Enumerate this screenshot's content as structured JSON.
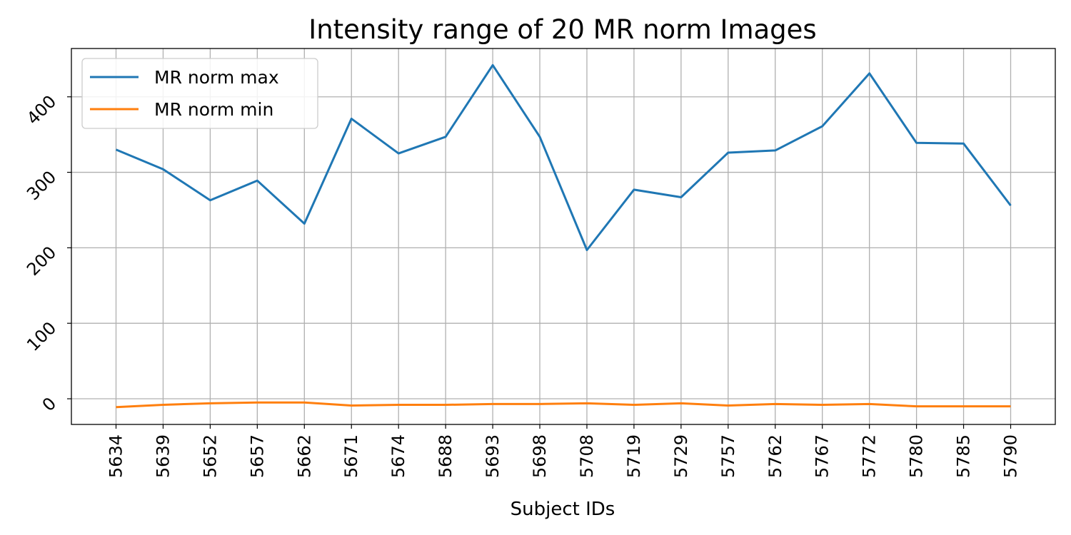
{
  "chart_data": {
    "type": "line",
    "title": "Intensity range of 20 MR norm Images",
    "xlabel": "Subject IDs",
    "ylabel": "",
    "categories": [
      "5634",
      "5639",
      "5652",
      "5657",
      "5662",
      "5671",
      "5674",
      "5688",
      "5693",
      "5698",
      "5708",
      "5719",
      "5729",
      "5757",
      "5762",
      "5767",
      "5772",
      "5780",
      "5785",
      "5790"
    ],
    "ylim": [
      -34,
      464
    ],
    "yticks": [
      0,
      100,
      200,
      300,
      400
    ],
    "grid": true,
    "legend_position": "top-left",
    "series": [
      {
        "name": "MR norm max",
        "color": "#1f77b4",
        "values": [
          330,
          304,
          263,
          289,
          232,
          371,
          325,
          347,
          442,
          347,
          197,
          277,
          267,
          326,
          329,
          361,
          431,
          339,
          338,
          256
        ]
      },
      {
        "name": "MR norm min",
        "color": "#ff7f0e",
        "values": [
          -11,
          -8,
          -6,
          -5,
          -5,
          -9,
          -8,
          -8,
          -7,
          -7,
          -6,
          -8,
          -6,
          -9,
          -7,
          -8,
          -7,
          -10,
          -10,
          -10
        ]
      }
    ]
  }
}
